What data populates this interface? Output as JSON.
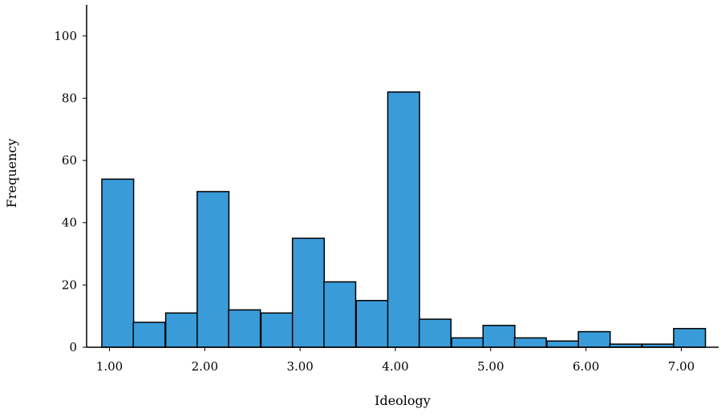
{
  "chart_data": {
    "type": "bar",
    "xlabel": "Ideology",
    "ylabel": "Frequency",
    "xlim": [
      0.92,
      7.24
    ],
    "ylim": [
      0,
      110
    ],
    "x_ticks": [
      1,
      2,
      3,
      4,
      5,
      6,
      7
    ],
    "x_tick_labels": [
      "1.00",
      "2.00",
      "3.00",
      "4.00",
      "5.00",
      "6.00",
      "7.00"
    ],
    "y_ticks": [
      0,
      20,
      40,
      60,
      80,
      100
    ],
    "y_tick_labels": [
      "0",
      "20",
      "40",
      "60",
      "80",
      "100"
    ],
    "bin_width": 0.3333,
    "bin_starts": [
      0.92,
      1.25,
      1.59,
      1.92,
      2.25,
      2.59,
      2.92,
      3.25,
      3.59,
      3.92,
      4.25,
      4.59,
      4.92,
      5.25,
      5.59,
      5.92,
      6.25,
      6.59,
      6.92
    ],
    "values": [
      54,
      8,
      11,
      50,
      12,
      11,
      35,
      21,
      15,
      82,
      9,
      3,
      7,
      3,
      2,
      5,
      1,
      1,
      6
    ],
    "bar_color": "#3a9bd9",
    "bar_edge_color": "#000000",
    "grid": false
  }
}
